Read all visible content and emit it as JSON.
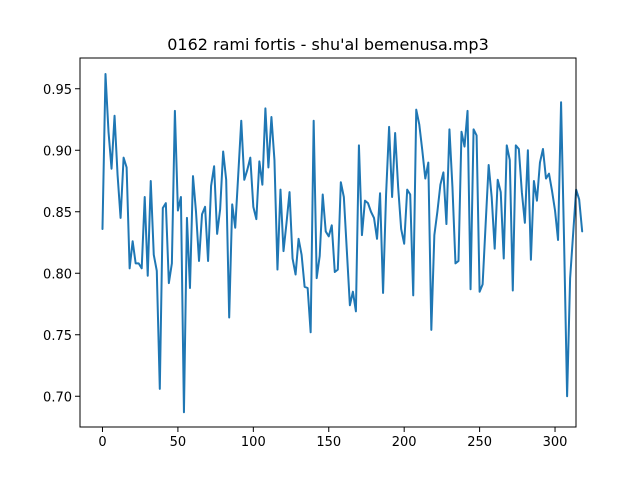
{
  "chart_data": {
    "type": "line",
    "title": "0162 rami fortis - shu'al bemenusa.mp3",
    "xlabel": "",
    "ylabel": "",
    "xlim": [
      -14.9,
      313.9
    ],
    "ylim": [
      0.675,
      0.975
    ],
    "x_ticks": [
      0,
      50,
      100,
      150,
      200,
      250,
      300
    ],
    "y_ticks": [
      0.7,
      0.75,
      0.8,
      0.85,
      0.9,
      0.95
    ],
    "x_tick_labels": [
      "0",
      "50",
      "100",
      "150",
      "200",
      "250",
      "300"
    ],
    "y_tick_labels": [
      "0.70",
      "0.75",
      "0.80",
      "0.85",
      "0.90",
      "0.95"
    ],
    "grid": false,
    "line_color": "#1f77b4",
    "x_step": 2,
    "values": [
      0.836,
      0.962,
      0.915,
      0.885,
      0.928,
      0.88,
      0.845,
      0.894,
      0.886,
      0.804,
      0.826,
      0.808,
      0.808,
      0.804,
      0.862,
      0.798,
      0.875,
      0.815,
      0.802,
      0.706,
      0.853,
      0.857,
      0.792,
      0.808,
      0.932,
      0.851,
      0.862,
      0.687,
      0.845,
      0.788,
      0.879,
      0.85,
      0.81,
      0.848,
      0.854,
      0.81,
      0.871,
      0.887,
      0.832,
      0.852,
      0.899,
      0.876,
      0.764,
      0.856,
      0.837,
      0.88,
      0.924,
      0.876,
      0.884,
      0.894,
      0.854,
      0.844,
      0.891,
      0.872,
      0.934,
      0.886,
      0.927,
      0.892,
      0.803,
      0.868,
      0.818,
      0.841,
      0.866,
      0.812,
      0.799,
      0.828,
      0.815,
      0.789,
      0.788,
      0.752,
      0.924,
      0.796,
      0.814,
      0.864,
      0.834,
      0.83,
      0.839,
      0.801,
      0.803,
      0.874,
      0.862,
      0.818,
      0.774,
      0.785,
      0.769,
      0.904,
      0.831,
      0.859,
      0.857,
      0.85,
      0.845,
      0.828,
      0.865,
      0.784,
      0.864,
      0.919,
      0.862,
      0.914,
      0.87,
      0.836,
      0.824,
      0.868,
      0.864,
      0.782,
      0.933,
      0.921,
      0.9,
      0.877,
      0.89,
      0.754,
      0.831,
      0.85,
      0.872,
      0.882,
      0.84,
      0.917,
      0.87,
      0.808,
      0.81,
      0.915,
      0.903,
      0.932,
      0.787,
      0.917,
      0.912,
      0.785,
      0.791,
      0.84,
      0.888,
      0.862,
      0.82,
      0.876,
      0.866,
      0.812,
      0.904,
      0.892,
      0.786,
      0.904,
      0.901,
      0.866,
      0.841,
      0.9,
      0.811,
      0.875,
      0.859,
      0.89,
      0.901,
      0.877,
      0.881,
      0.867,
      0.851,
      0.827,
      0.939,
      0.826,
      0.7,
      0.796,
      0.832,
      0.868,
      0.86,
      0.834
    ]
  }
}
